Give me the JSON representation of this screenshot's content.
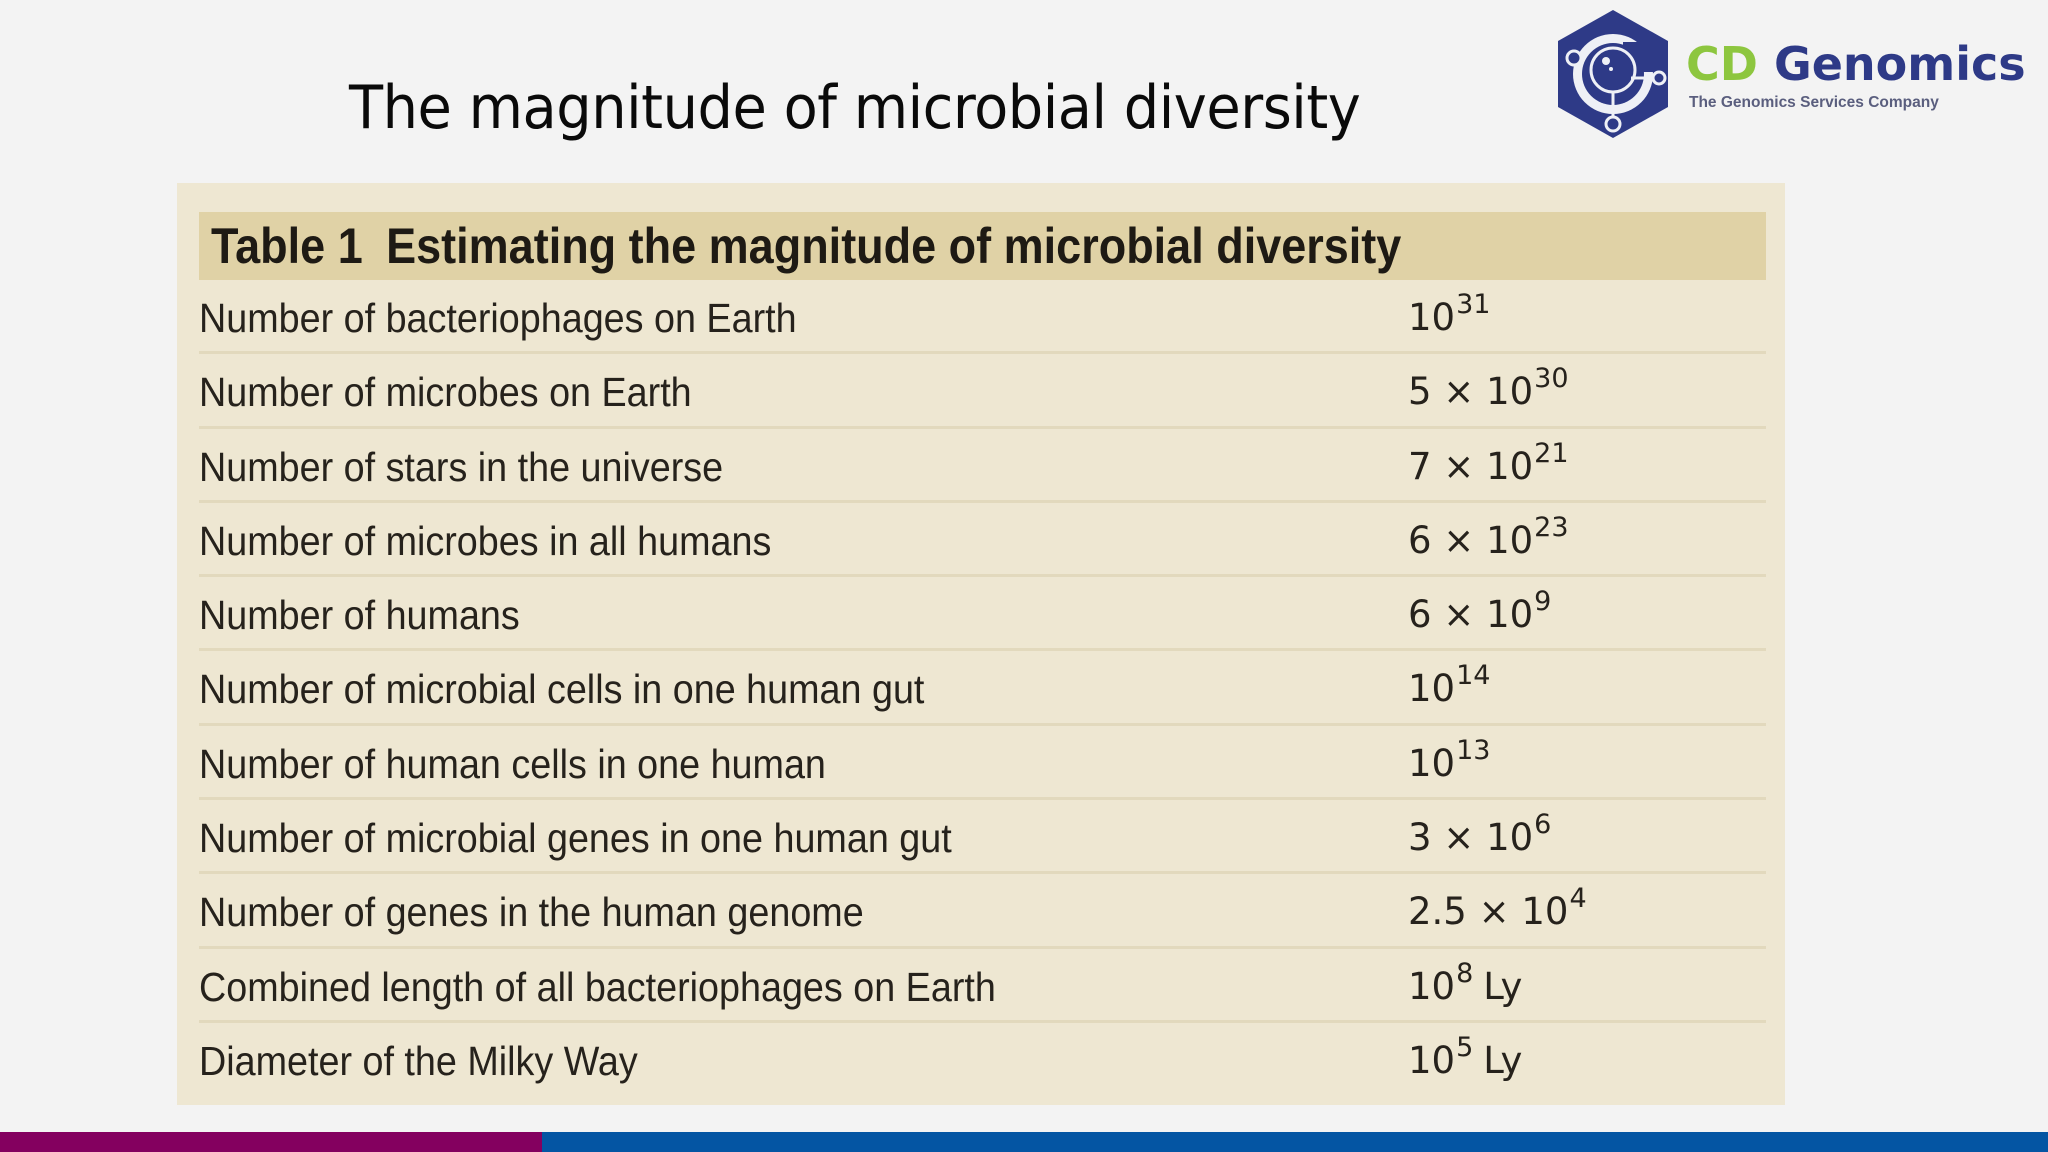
{
  "slide": {
    "title": "The magnitude of microbial diversity"
  },
  "logo": {
    "brand_part1": "CD",
    "brand_part2": "Genomics",
    "tagline": "The Genomics Services Company",
    "icon": "cd-genomics-hexagon-logo-icon",
    "colors": {
      "green": "#8dc63f",
      "navy": "#2e3a87"
    }
  },
  "table": {
    "caption_number": "Table 1",
    "caption_title": "Estimating the magnitude of microbial diversity",
    "header_bg": "#e0d2a6",
    "panel_bg": "#eee7d2",
    "rows": [
      {
        "label": "Number of bacteriophages on Earth",
        "coef": "",
        "base": "10",
        "exp": "31",
        "unit": ""
      },
      {
        "label": "Number of microbes on Earth",
        "coef": "5 × ",
        "base": "10",
        "exp": "30",
        "unit": ""
      },
      {
        "label": "Number of stars in the universe",
        "coef": "7 × ",
        "base": "10",
        "exp": "21",
        "unit": ""
      },
      {
        "label": "Number of microbes in all humans",
        "coef": "6 × ",
        "base": "10",
        "exp": "23",
        "unit": ""
      },
      {
        "label": "Number of humans",
        "coef": "6 × ",
        "base": "10",
        "exp": "9",
        "unit": ""
      },
      {
        "label": "Number of microbial cells in one human gut",
        "coef": "",
        "base": "10",
        "exp": "14",
        "unit": ""
      },
      {
        "label": "Number of human cells in one human",
        "coef": "",
        "base": "10",
        "exp": "13",
        "unit": ""
      },
      {
        "label": "Number of microbial genes in one human gut",
        "coef": "3 × ",
        "base": "10",
        "exp": "6",
        "unit": ""
      },
      {
        "label": "Number of genes in the human genome",
        "coef": "2.5 × ",
        "base": "10",
        "exp": "4",
        "unit": ""
      },
      {
        "label": "Combined length of all bacteriophages on Earth",
        "coef": "",
        "base": "10",
        "exp": "8",
        "unit": "Ly"
      },
      {
        "label": "Diameter of the Milky Way",
        "coef": "",
        "base": "10",
        "exp": "5",
        "unit": "Ly"
      }
    ]
  },
  "footer": {
    "bar_colors": {
      "left": "#84005f",
      "right": "#0455a3"
    }
  }
}
